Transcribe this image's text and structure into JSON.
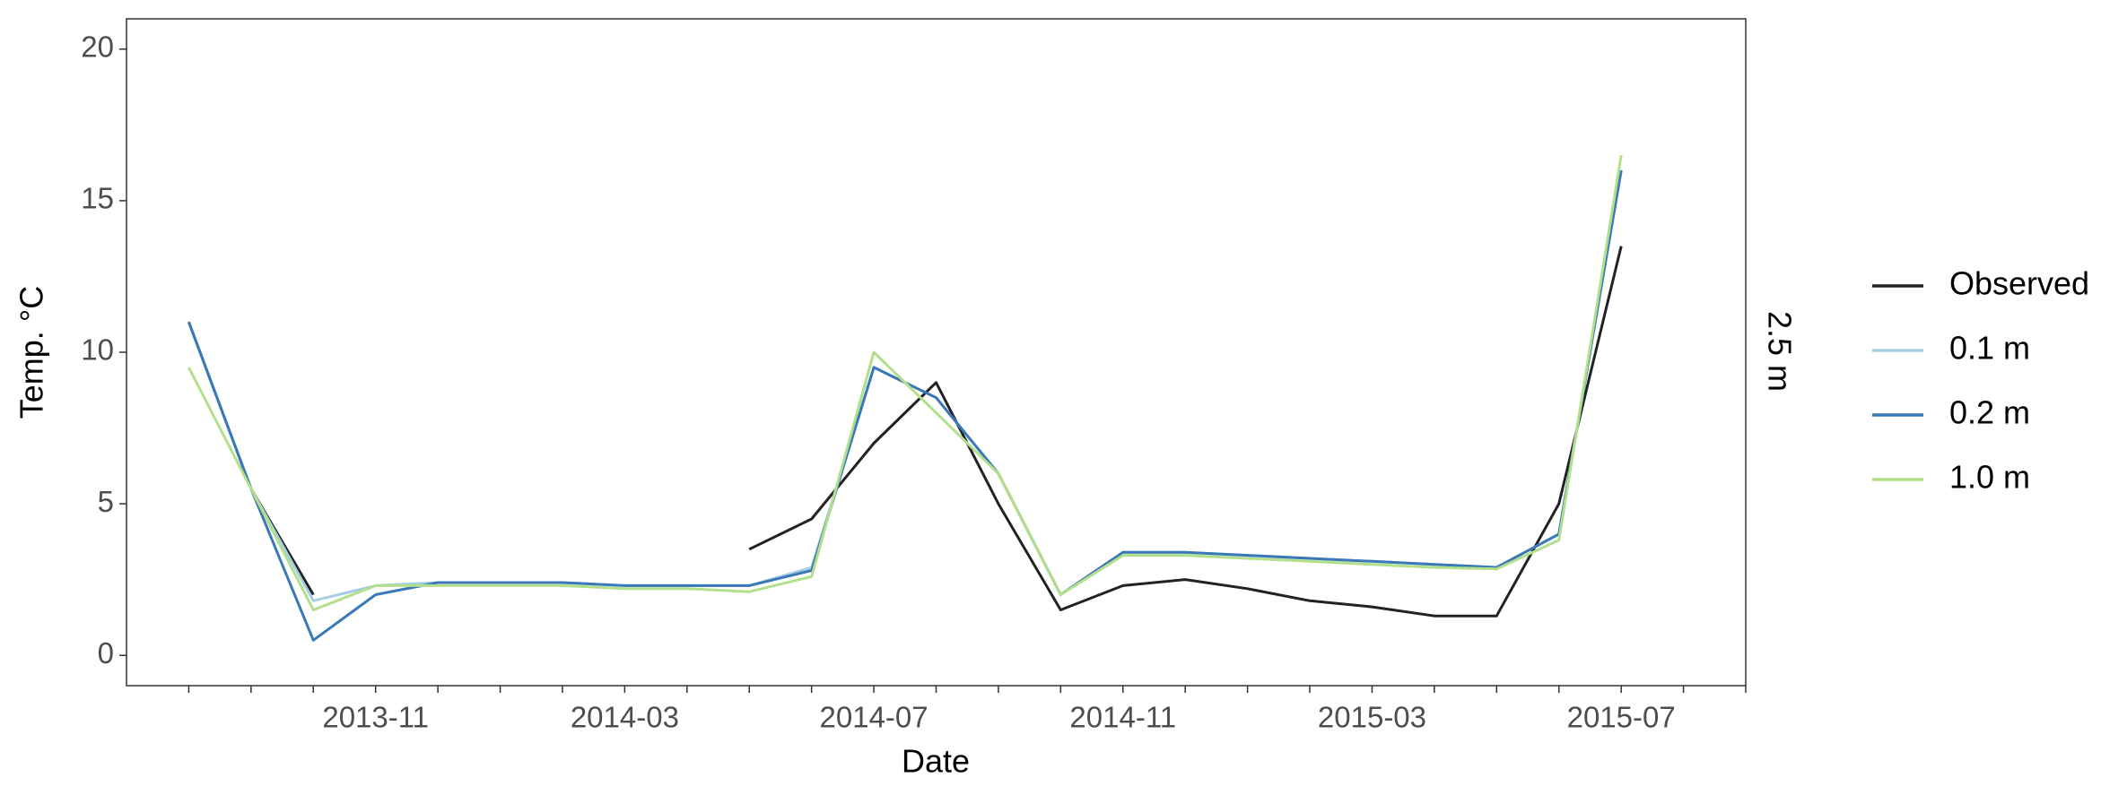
{
  "chart_data": {
    "type": "line",
    "x_label": "Date",
    "y_label": "Temp. °C",
    "facet_label": "2.5 m",
    "x": [
      "2013-08",
      "2013-09",
      "2013-10",
      "2013-11",
      "2013-12",
      "2014-01",
      "2014-02",
      "2014-03",
      "2014-04",
      "2014-05",
      "2014-06",
      "2014-07",
      "2014-08",
      "2014-09",
      "2014-10",
      "2014-11",
      "2014-12",
      "2015-01",
      "2015-02",
      "2015-03",
      "2015-04",
      "2015-05",
      "2015-06",
      "2015-07"
    ],
    "series": [
      {
        "name": "Observed",
        "color": "#222222",
        "values": [
          11,
          5.5,
          2.0,
          null,
          null,
          null,
          null,
          null,
          null,
          3.5,
          4.5,
          7,
          9,
          5,
          1.5,
          2.3,
          2.5,
          2.2,
          1.8,
          1.6,
          1.3,
          1.3,
          5.0,
          13.5
        ]
      },
      {
        "name": "0.1 m",
        "color": "#a6cee3",
        "values": [
          11,
          5.5,
          1.8,
          2.3,
          2.4,
          2.4,
          2.4,
          2.3,
          2.3,
          2.3,
          2.9,
          9.5,
          8.5,
          6,
          2,
          3.4,
          3.4,
          3.3,
          3.2,
          3.1,
          3.0,
          2.9,
          4,
          16
        ]
      },
      {
        "name": "0.2 m",
        "color": "#3a78b8",
        "values": [
          11,
          5.5,
          0.5,
          2.0,
          2.4,
          2.4,
          2.4,
          2.3,
          2.3,
          2.3,
          2.8,
          9.5,
          8.5,
          6,
          2,
          3.4,
          3.4,
          3.3,
          3.2,
          3.1,
          3.0,
          2.9,
          4,
          16
        ]
      },
      {
        "name": "1.0 m",
        "color": "#b2df8a",
        "values": [
          9.5,
          5.5,
          1.5,
          2.3,
          2.3,
          2.3,
          2.3,
          2.2,
          2.2,
          2.1,
          2.6,
          10,
          8,
          6,
          2,
          3.3,
          3.3,
          3.2,
          3.1,
          3.0,
          2.9,
          2.85,
          3.8,
          16.5
        ]
      }
    ],
    "xlim": [
      "2013-07",
      "2015-09"
    ],
    "xticks": [
      "2013-11",
      "2014-03",
      "2014-07",
      "2014-11",
      "2015-03",
      "2015-07"
    ],
    "ylim": [
      -1,
      21
    ],
    "yticks": [
      0,
      5,
      10,
      15,
      20
    ]
  }
}
